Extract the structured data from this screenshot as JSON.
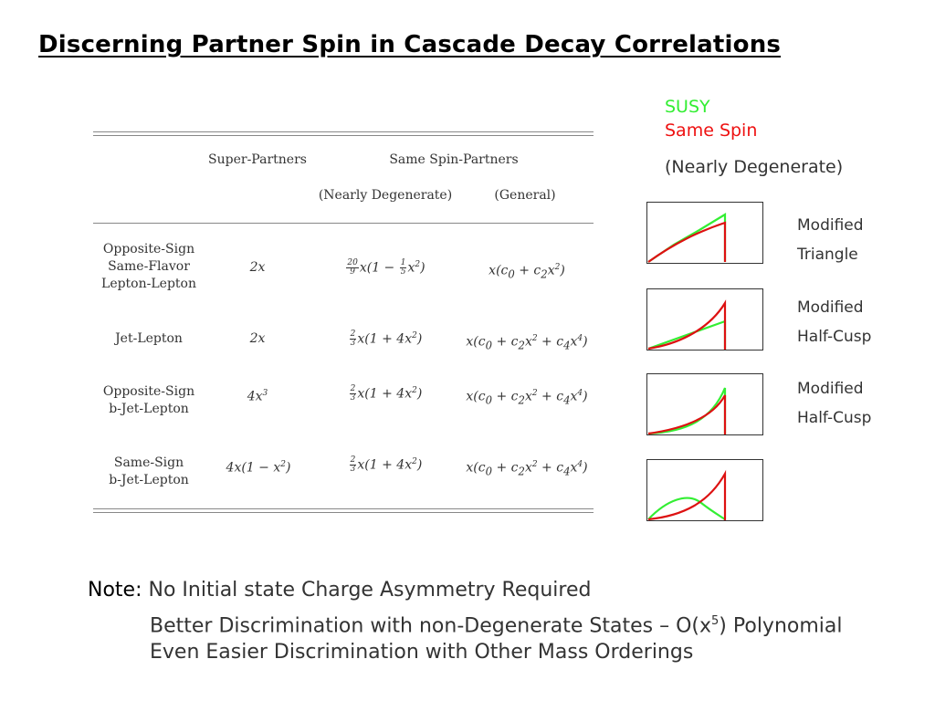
{
  "title": "Discerning Partner Spin in Cascade Decay Correlations",
  "legend": {
    "susy": "SUSY",
    "same_spin": "Same Spin",
    "nearly_degenerate": "(Nearly Degenerate)",
    "colors": {
      "susy": "#33ee33",
      "same_spin": "#ee1111"
    }
  },
  "table": {
    "header_super": "Super-Partners",
    "header_same": "Same Spin-Partners",
    "sub_nd": "(Nearly Degenerate)",
    "sub_gen": "(General)",
    "rows": [
      {
        "label": [
          "Opposite-Sign",
          "Same-Flavor",
          "Lepton-Lepton"
        ]
      },
      {
        "label": [
          "Jet-Lepton"
        ]
      },
      {
        "label": [
          "Opposite-Sign",
          "b-Jet-Lepton"
        ]
      },
      {
        "label": [
          "Same-Sign",
          "b-Jet-Lepton"
        ]
      }
    ]
  },
  "plots": [
    {
      "label1": "Modified",
      "label2": "Triangle"
    },
    {
      "label1": "Modified",
      "label2": "Half-Cusp"
    },
    {
      "label1": "Modified",
      "label2": "Half-Cusp"
    },
    {
      "label1": "",
      "label2": ""
    }
  ],
  "note": {
    "head": "Note:",
    "line1": "No Initial state Charge Asymmetry Required",
    "line2_pre": "Better Discrimination with non-Degenerate States – O(x",
    "line2_sup": "5",
    "line2_post": ") Polynomial",
    "line3": "Even Easier Discrimination with Other Mass Orderings"
  }
}
